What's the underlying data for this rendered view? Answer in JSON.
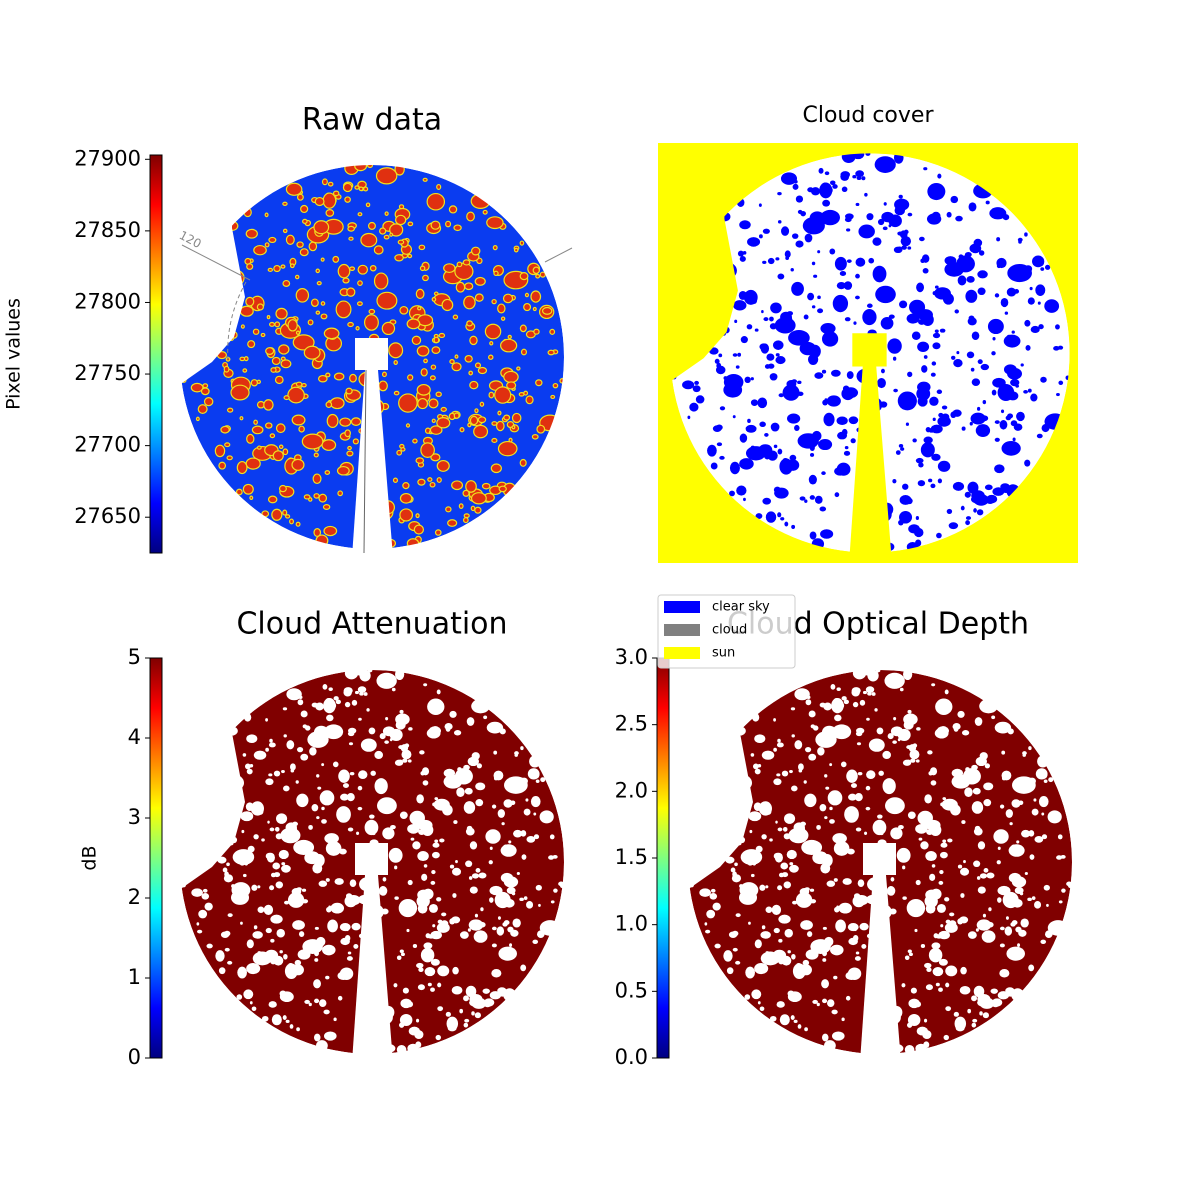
{
  "chart_data": [
    {
      "type": "image",
      "title": "Raw data",
      "colormap": "jet",
      "colorbar_label": "Pixel values",
      "zlim": [
        27625,
        27903
      ],
      "zticks": [
        27650,
        27700,
        27750,
        27800,
        27850,
        27900
      ],
      "annotation": "120"
    },
    {
      "type": "image",
      "title": "Cloud cover",
      "legend": [
        {
          "name": "clear sky",
          "color": "#0000ff"
        },
        {
          "name": "cloud",
          "color": "#808080"
        },
        {
          "name": "sun",
          "color": "#ffff00"
        }
      ]
    },
    {
      "type": "image",
      "title": "Cloud Attenuation",
      "colormap": "jet",
      "colorbar_label": "dB",
      "zlim": [
        0,
        5
      ],
      "zticks": [
        0,
        1,
        2,
        3,
        4,
        5
      ]
    },
    {
      "type": "image",
      "title": "Cloud Optical Depth",
      "colormap": "jet",
      "zlim": [
        0,
        3
      ],
      "zticks": [
        {
          "value": 0,
          "label": "0.0"
        },
        {
          "value": 0.5,
          "label": "0.5"
        },
        {
          "value": 1,
          "label": "1.0"
        },
        {
          "value": 1.5,
          "label": "1.5"
        },
        {
          "value": 2,
          "label": "2.0"
        },
        {
          "value": 2.5,
          "label": "2.5"
        },
        {
          "value": 3,
          "label": "3.0"
        }
      ]
    }
  ]
}
